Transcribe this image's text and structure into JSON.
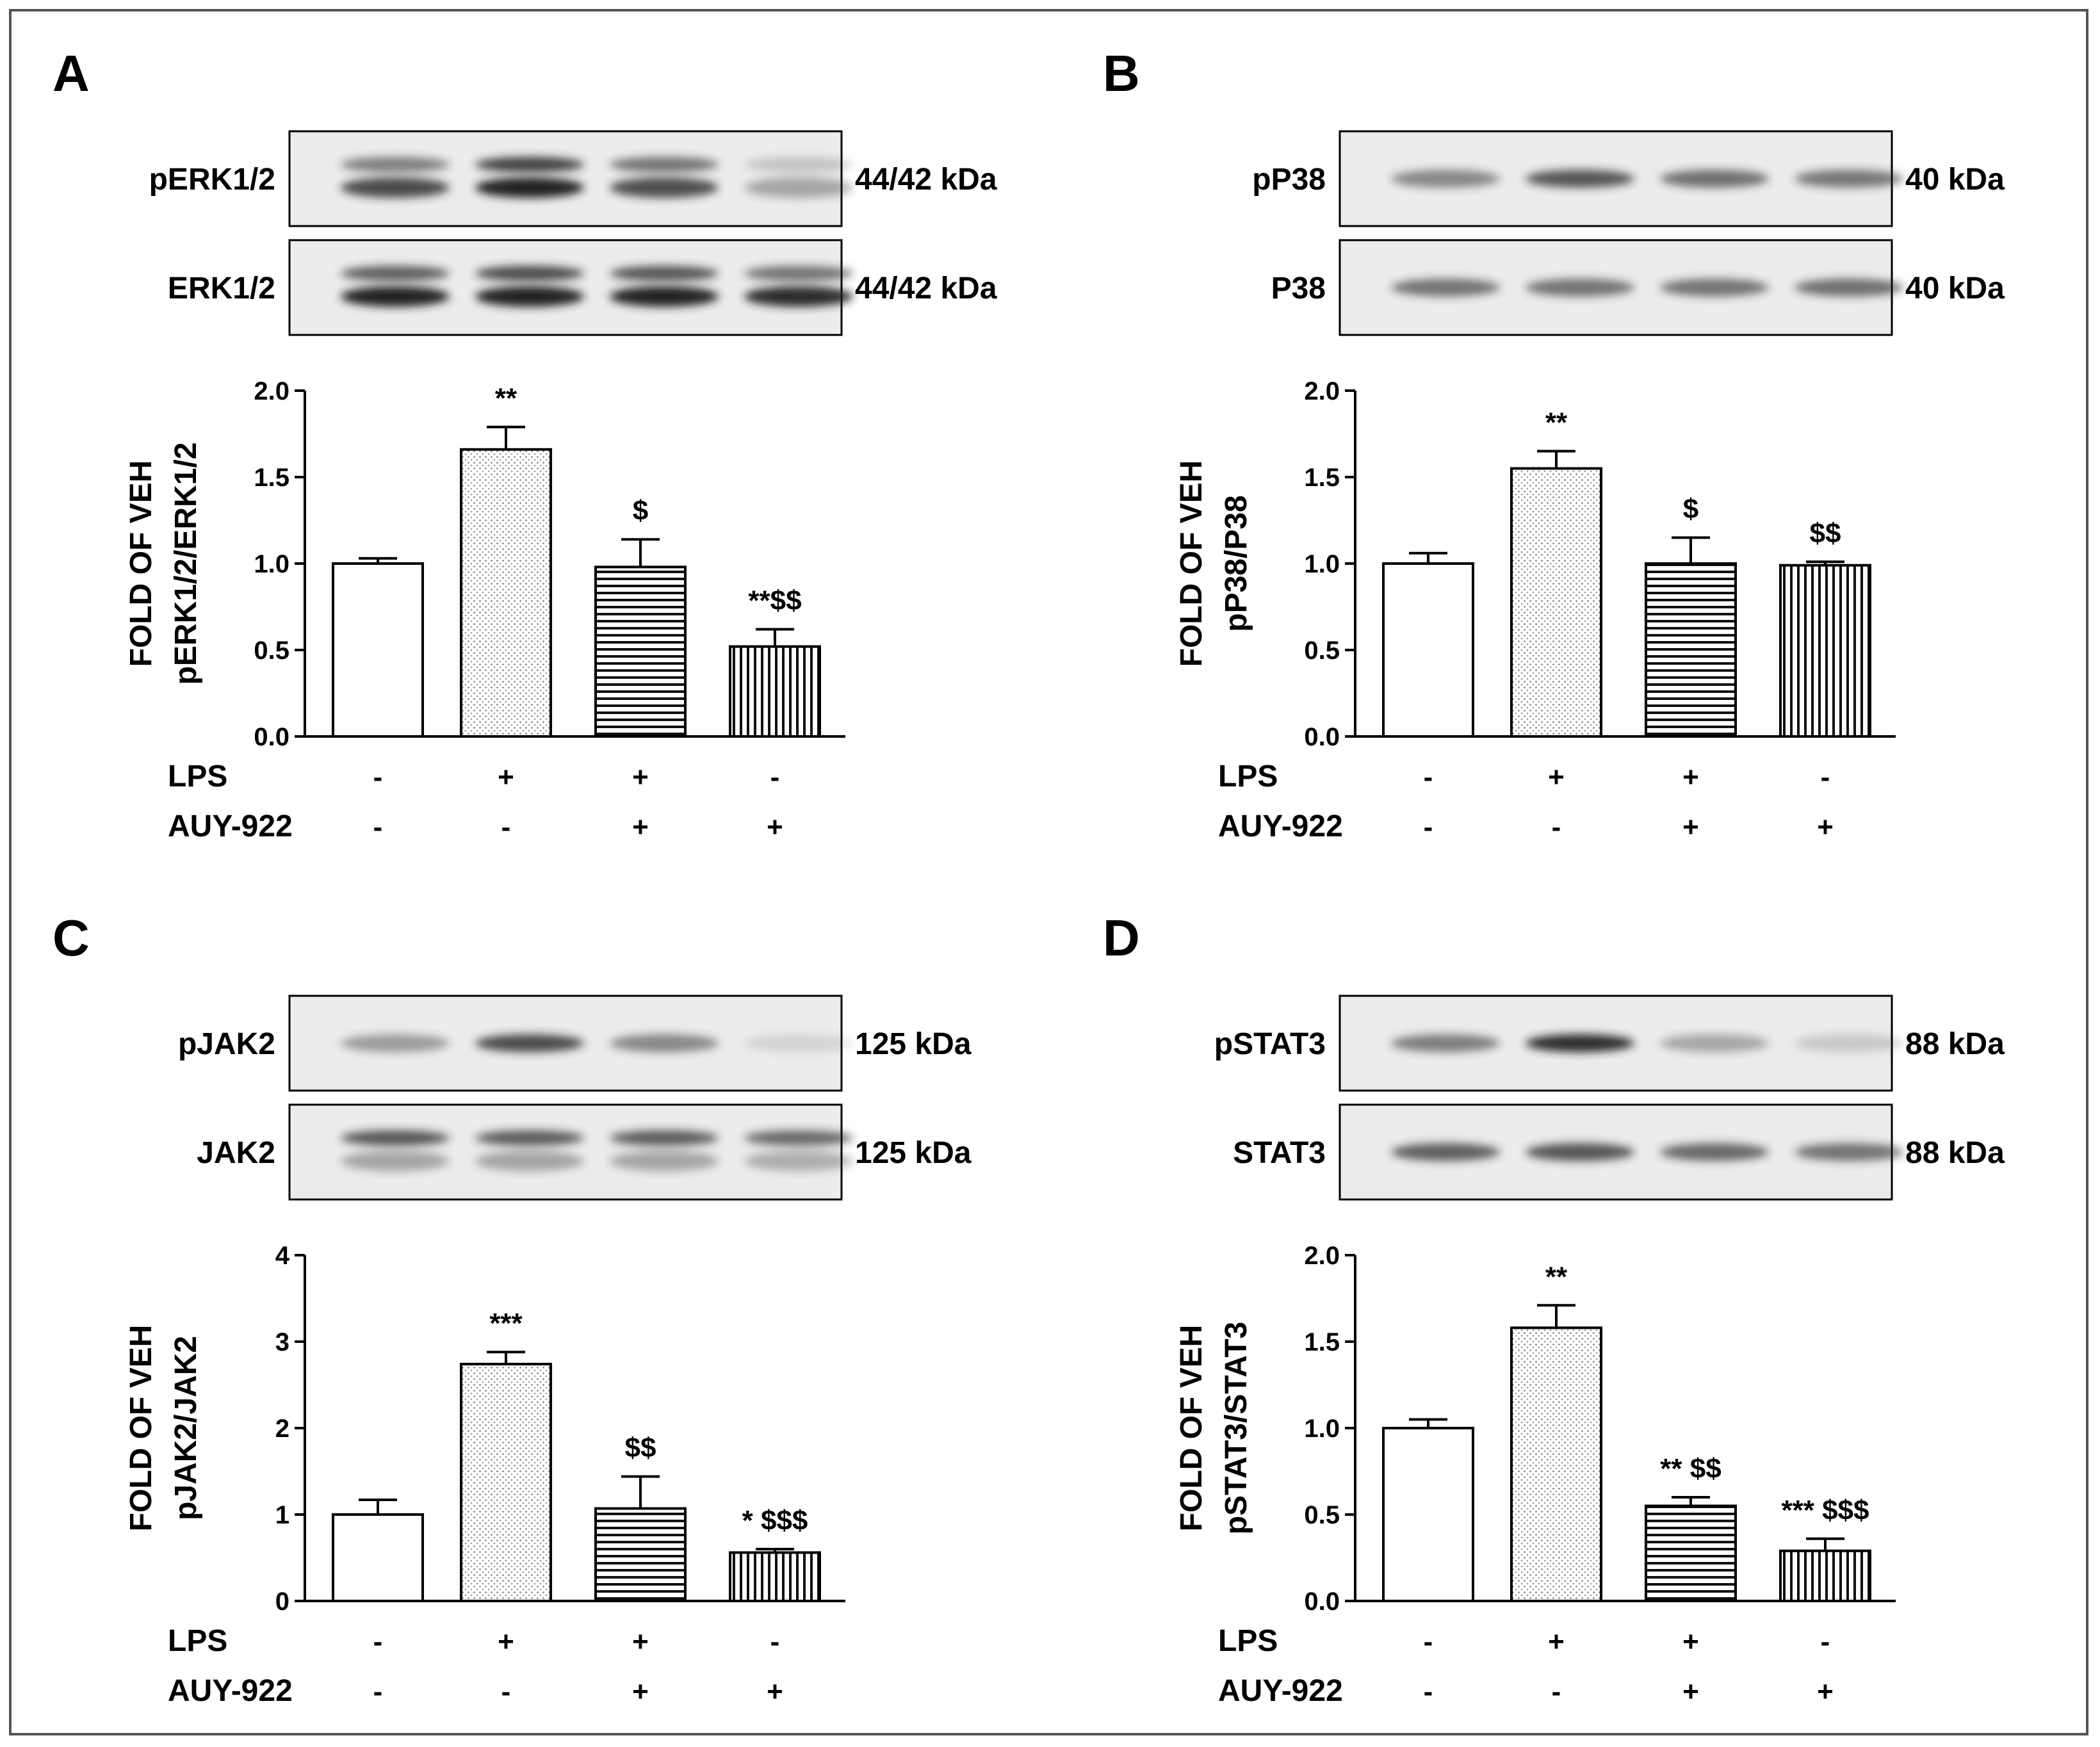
{
  "colors": {
    "ink": "#000000",
    "frame": "#555555",
    "blot_bg": "#ececec",
    "band": "#222222"
  },
  "row_labels": {
    "lps": "LPS",
    "auy": "AUY-922",
    "signs": {
      "minus": "-",
      "plus": "+"
    }
  },
  "panels": [
    {
      "letter": "A",
      "blots": [
        {
          "label": "pERK1/2",
          "kda": "44/42 kDa",
          "bands": [
            [
              0.55,
              0.8
            ],
            [
              0.85,
              1.0
            ],
            [
              0.6,
              0.78
            ],
            [
              0.2,
              0.35
            ]
          ],
          "doublet": true
        },
        {
          "label": "ERK1/2",
          "kda": "44/42 kDa",
          "bands": [
            [
              0.7,
              1.0
            ],
            [
              0.8,
              1.0
            ],
            [
              0.75,
              1.0
            ],
            [
              0.6,
              0.95
            ]
          ],
          "doublet": true
        }
      ],
      "chart_data": {
        "type": "bar",
        "ylabel": [
          "FOLD OF VEH",
          "pERK1/2/ERK1/2"
        ],
        "ylim": [
          0,
          2.0
        ],
        "ticks": [
          "0.0",
          "0.5",
          "1.0",
          "1.5",
          "2.0"
        ],
        "tick_values": [
          0,
          0.5,
          1.0,
          1.5,
          2.0
        ],
        "values": [
          1.0,
          1.66,
          0.98,
          0.52
        ],
        "errors": [
          0.03,
          0.13,
          0.16,
          0.1
        ],
        "annotations": [
          "",
          "**",
          "$",
          "**$$"
        ],
        "patterns": [
          "none",
          "dots",
          "hlines",
          "vlines"
        ],
        "lps": [
          "-",
          "+",
          "+",
          "-"
        ],
        "auy": [
          "-",
          "-",
          "+",
          "+"
        ]
      }
    },
    {
      "letter": "B",
      "blots": [
        {
          "label": "pP38",
          "kda": "40 kDa",
          "bands": [
            [
              0.5,
              0
            ],
            [
              0.75,
              0
            ],
            [
              0.62,
              0
            ],
            [
              0.58,
              0
            ]
          ],
          "doublet": false
        },
        {
          "label": "P38",
          "kda": "40 kDa",
          "bands": [
            [
              0.6,
              0
            ],
            [
              0.6,
              0
            ],
            [
              0.6,
              0
            ],
            [
              0.62,
              0
            ]
          ],
          "doublet": false
        }
      ],
      "chart_data": {
        "type": "bar",
        "ylabel": [
          "FOLD OF VEH",
          "pP38/P38"
        ],
        "ylim": [
          0,
          2.0
        ],
        "ticks": [
          "0.0",
          "0.5",
          "1.0",
          "1.5",
          "2.0"
        ],
        "tick_values": [
          0,
          0.5,
          1.0,
          1.5,
          2.0
        ],
        "values": [
          1.0,
          1.55,
          1.0,
          0.99
        ],
        "errors": [
          0.06,
          0.1,
          0.15,
          0.02
        ],
        "annotations": [
          "",
          "**",
          "$",
          "$$"
        ],
        "patterns": [
          "none",
          "dots",
          "hlines",
          "vlines"
        ],
        "lps": [
          "-",
          "+",
          "+",
          "-"
        ],
        "auy": [
          "-",
          "-",
          "+",
          "+"
        ]
      }
    },
    {
      "letter": "C",
      "blots": [
        {
          "label": "pJAK2",
          "kda": "125 kDa",
          "bands": [
            [
              0.4,
              0
            ],
            [
              0.8,
              0
            ],
            [
              0.5,
              0
            ],
            [
              0.12,
              0
            ]
          ],
          "doublet": false
        },
        {
          "label": "JAK2",
          "kda": "125 kDa",
          "bands": [
            [
              0.75,
              0.35
            ],
            [
              0.72,
              0.35
            ],
            [
              0.72,
              0.35
            ],
            [
              0.65,
              0.3
            ]
          ],
          "doublet": true
        }
      ],
      "chart_data": {
        "type": "bar",
        "ylabel": [
          "FOLD OF VEH",
          "pJAK2/JAK2"
        ],
        "ylim": [
          0,
          4
        ],
        "ticks": [
          "0",
          "1",
          "2",
          "3",
          "4"
        ],
        "tick_values": [
          0,
          1,
          2,
          3,
          4
        ],
        "values": [
          1.0,
          2.74,
          1.07,
          0.56
        ],
        "errors": [
          0.17,
          0.14,
          0.37,
          0.04
        ],
        "annotations": [
          "",
          "***",
          "$$",
          "* $$$"
        ],
        "patterns": [
          "none",
          "dots",
          "hlines",
          "vlines"
        ],
        "lps": [
          "-",
          "+",
          "+",
          "-"
        ],
        "auy": [
          "-",
          "-",
          "+",
          "+"
        ]
      }
    },
    {
      "letter": "D",
      "blots": [
        {
          "label": "pSTAT3",
          "kda": "88 kDa",
          "bands": [
            [
              0.55,
              0
            ],
            [
              0.95,
              0
            ],
            [
              0.35,
              0
            ],
            [
              0.18,
              0
            ]
          ],
          "doublet": false
        },
        {
          "label": "STAT3",
          "kda": "88 kDa",
          "bands": [
            [
              0.7,
              0
            ],
            [
              0.75,
              0
            ],
            [
              0.65,
              0
            ],
            [
              0.6,
              0
            ]
          ],
          "doublet": false
        }
      ],
      "chart_data": {
        "type": "bar",
        "ylabel": [
          "FOLD OF VEH",
          "pSTAT3/STAT3"
        ],
        "ylim": [
          0,
          2.0
        ],
        "ticks": [
          "0.0",
          "0.5",
          "1.0",
          "1.5",
          "2.0"
        ],
        "tick_values": [
          0,
          0.5,
          1.0,
          1.5,
          2.0
        ],
        "values": [
          1.0,
          1.58,
          0.55,
          0.29
        ],
        "errors": [
          0.05,
          0.13,
          0.05,
          0.07
        ],
        "annotations": [
          "",
          "**",
          "** $$",
          "*** $$$"
        ],
        "patterns": [
          "none",
          "dots",
          "hlines",
          "vlines"
        ],
        "lps": [
          "-",
          "+",
          "+",
          "-"
        ],
        "auy": [
          "-",
          "-",
          "+",
          "+"
        ]
      }
    }
  ]
}
